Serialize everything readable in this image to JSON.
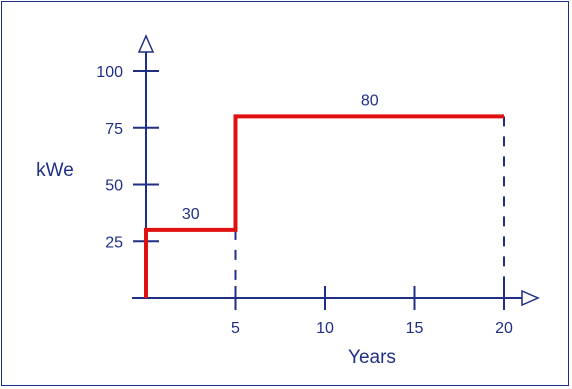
{
  "chart_data": {
    "type": "line",
    "xlabel": "Years",
    "ylabel": "kWe",
    "xlim": [
      0,
      20
    ],
    "ylim": [
      0,
      100
    ],
    "x_ticks": [
      5,
      10,
      15,
      20
    ],
    "y_ticks": [
      25,
      50,
      75,
      100
    ],
    "grid": false,
    "series": [
      {
        "step": "post",
        "x": [
          0,
          0,
          5,
          5,
          20
        ],
        "y": [
          0,
          30,
          30,
          80,
          80
        ],
        "color": "#e01010"
      }
    ],
    "annotations": [
      {
        "text": "30",
        "x": 2.5,
        "y": 30
      },
      {
        "text": "80",
        "x": 12.5,
        "y": 80
      }
    ],
    "dashed_guides": [
      {
        "x": 5,
        "from_y": 0,
        "to_y": 30
      },
      {
        "x": 20,
        "from_y": 0,
        "to_y": 80
      }
    ],
    "axis_color": "#1f2f86"
  }
}
